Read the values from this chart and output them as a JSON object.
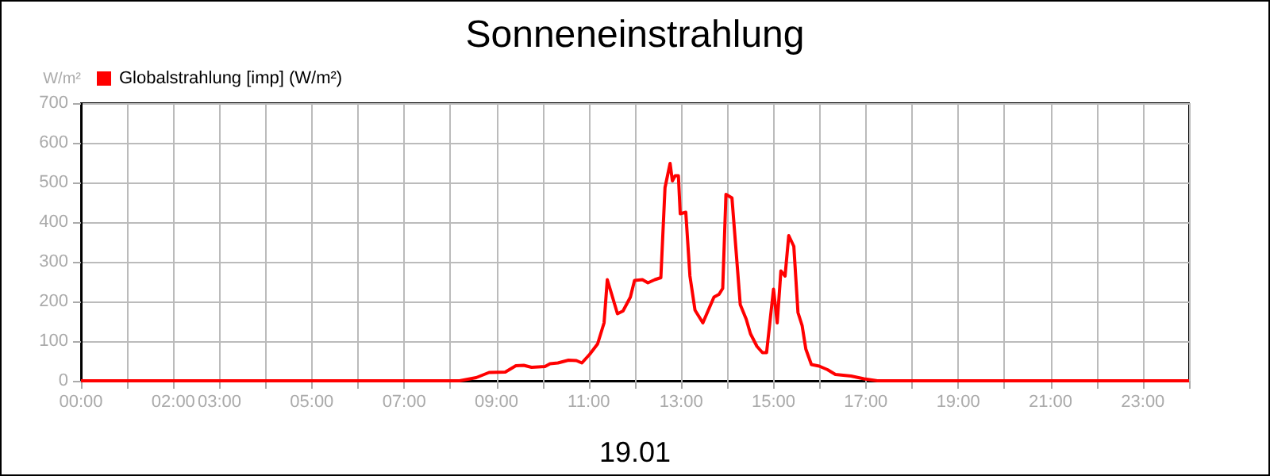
{
  "chart_data": {
    "type": "line",
    "title": "Sonneneinstrahlung",
    "xlabel": "19.01",
    "ylabel": "W/m²",
    "legend": "top left",
    "grid": true,
    "marker": "none",
    "line_style": "solid",
    "xlim": [
      0,
      24
    ],
    "xticks": [
      {
        "value": 0,
        "label": "00:00"
      },
      {
        "value": 1,
        "label": null
      },
      {
        "value": 2,
        "label": "02:00"
      },
      {
        "value": 3,
        "label": "03:00"
      },
      {
        "value": 4,
        "label": null
      },
      {
        "value": 5,
        "label": "05:00"
      },
      {
        "value": 6,
        "label": null
      },
      {
        "value": 7,
        "label": "07:00"
      },
      {
        "value": 8,
        "label": null
      },
      {
        "value": 9,
        "label": "09:00"
      },
      {
        "value": 10,
        "label": null
      },
      {
        "value": 11,
        "label": "11:00"
      },
      {
        "value": 12,
        "label": null
      },
      {
        "value": 13,
        "label": "13:00"
      },
      {
        "value": 14,
        "label": null
      },
      {
        "value": 15,
        "label": "15:00"
      },
      {
        "value": 16,
        "label": null
      },
      {
        "value": 17,
        "label": "17:00"
      },
      {
        "value": 18,
        "label": null
      },
      {
        "value": 19,
        "label": "19:00"
      },
      {
        "value": 20,
        "label": null
      },
      {
        "value": 21,
        "label": "21:00"
      },
      {
        "value": 22,
        "label": null
      },
      {
        "value": 23,
        "label": "23:00"
      },
      {
        "value": 24,
        "label": null
      }
    ],
    "ylim": [
      0,
      700
    ],
    "yticks": [
      0,
      100,
      200,
      300,
      400,
      500,
      600,
      700
    ],
    "series": [
      {
        "name": "Globalstrahlung [imp] (W/m²)",
        "color": "#ff0000",
        "x": [
          0,
          8.2,
          8.56,
          8.84,
          9.19,
          9.42,
          9.59,
          9.76,
          10.05,
          10.16,
          10.33,
          10.56,
          10.73,
          10.85,
          11.02,
          11.19,
          11.33,
          11.4,
          11.48,
          11.62,
          11.74,
          11.9,
          11.99,
          12.16,
          12.28,
          12.43,
          12.56,
          12.65,
          12.76,
          12.81,
          12.87,
          12.94,
          12.98,
          13.1,
          13.19,
          13.3,
          13.47,
          13.71,
          13.82,
          13.9,
          13.97,
          14.1,
          14.28,
          14.41,
          14.5,
          14.64,
          14.76,
          14.85,
          15.0,
          15.08,
          15.16,
          15.25,
          15.33,
          15.44,
          15.53,
          15.62,
          15.7,
          15.82,
          15.99,
          16.17,
          16.34,
          16.68,
          16.96,
          17.25,
          24
        ],
        "values": [
          0,
          0,
          8,
          21,
          22,
          38,
          39,
          34,
          36,
          43,
          45,
          52,
          51,
          45,
          67,
          93,
          146,
          255,
          224,
          169,
          176,
          211,
          253,
          255,
          247,
          255,
          260,
          487,
          548,
          504,
          517,
          517,
          421,
          425,
          264,
          178,
          146,
          211,
          218,
          233,
          470,
          461,
          192,
          155,
          119,
          87,
          71,
          71,
          231,
          146,
          277,
          264,
          366,
          339,
          172,
          139,
          80,
          41,
          37,
          28,
          16,
          12,
          5,
          0,
          0
        ]
      }
    ]
  }
}
